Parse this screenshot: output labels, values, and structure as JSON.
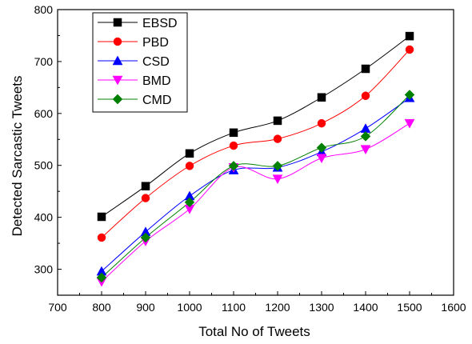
{
  "chart_data": {
    "type": "line",
    "title": "",
    "xlabel": "Total No of Tweets",
    "ylabel": "Detected Sarcastic Tweets",
    "xlim": [
      700,
      1600
    ],
    "ylim": [
      250,
      800
    ],
    "x_ticks": [
      700,
      800,
      900,
      1000,
      1100,
      1200,
      1300,
      1400,
      1500,
      1600
    ],
    "y_ticks": [
      300,
      400,
      500,
      600,
      700,
      800
    ],
    "grid": false,
    "legend_position": "top-left",
    "x": [
      800,
      900,
      1000,
      1100,
      1200,
      1300,
      1400,
      1500
    ],
    "series": [
      {
        "name": "EBSD",
        "color": "#000000",
        "marker": "square",
        "values": [
          401,
          460,
          523,
          563,
          586,
          631,
          686,
          749
        ]
      },
      {
        "name": "PBD",
        "color": "#ff0000",
        "marker": "circle",
        "values": [
          361,
          437,
          499,
          538,
          551,
          581,
          634,
          723
        ]
      },
      {
        "name": "CSD",
        "color": "#0000ff",
        "marker": "triangle-up",
        "values": [
          296,
          372,
          441,
          491,
          496,
          526,
          571,
          630
        ]
      },
      {
        "name": "BMD",
        "color": "#ff00ff",
        "marker": "triangle-down",
        "values": [
          276,
          354,
          416,
          496,
          474,
          514,
          531,
          581
        ]
      },
      {
        "name": "CMD",
        "color": "#008000",
        "marker": "diamond",
        "values": [
          284,
          361,
          429,
          499,
          499,
          534,
          556,
          636
        ]
      }
    ]
  }
}
